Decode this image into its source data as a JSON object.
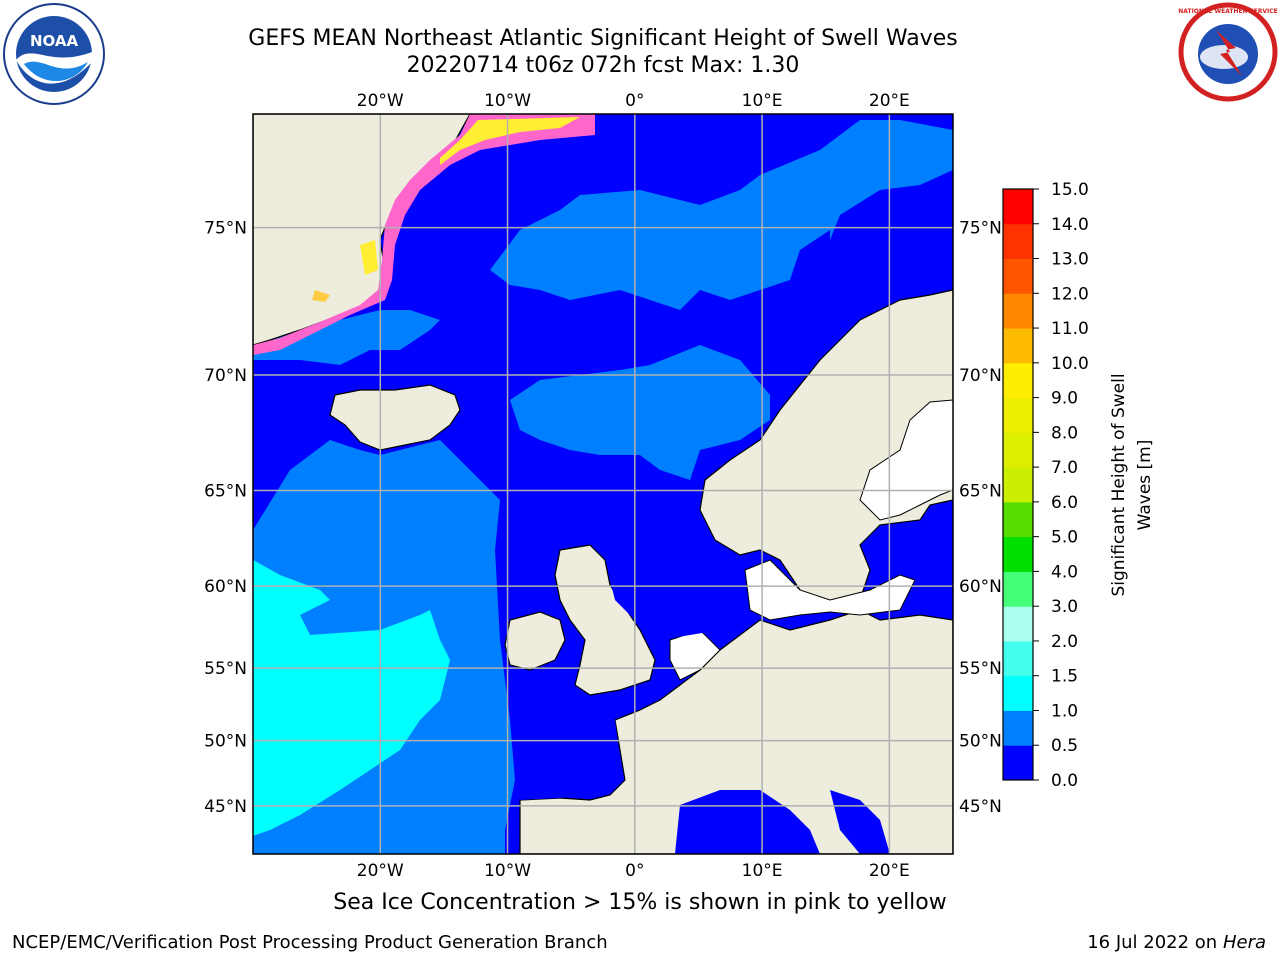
{
  "title": {
    "line1": "GEFS MEAN Northeast Atlantic Significant Height of Swell Waves",
    "line2": "20220714 t06z 072h fcst   Max: 1.30"
  },
  "logos": {
    "left": {
      "icon": "noaa-logo-icon",
      "text": "NOAA"
    },
    "right": {
      "icon": "nws-logo-icon",
      "text": "NATIONAL WEATHER SERVICE"
    }
  },
  "map": {
    "projection": "lat-lon",
    "lon_range": [
      -30,
      25
    ],
    "lat_range": [
      41,
      78
    ],
    "lon_ticks": [
      {
        "value": -20,
        "label": "20°W"
      },
      {
        "value": -10,
        "label": "10°W"
      },
      {
        "value": 0,
        "label": "0°"
      },
      {
        "value": 10,
        "label": "10°E"
      },
      {
        "value": 20,
        "label": "20°E"
      }
    ],
    "lat_ticks": [
      {
        "value": 45,
        "label": "45°N"
      },
      {
        "value": 50,
        "label": "50°N"
      },
      {
        "value": 55,
        "label": "55°N"
      },
      {
        "value": 60,
        "label": "60°N"
      },
      {
        "value": 65,
        "label": "65°N"
      },
      {
        "value": 70,
        "label": "70°N"
      },
      {
        "value": 75,
        "label": "75°N"
      }
    ],
    "grid": true,
    "colors": {
      "land": "#eeecdc",
      "ice_mask": "#ffffff",
      "ice_pink": "#ff66cc",
      "ice_yellow": "#ffee33",
      "grid": "#b0b0b0"
    }
  },
  "colorbar": {
    "label_line1": "Significant Height of Swell",
    "label_line2": "Waves [m]",
    "ticks": [
      "0.0",
      "0.5",
      "1.0",
      "1.5",
      "2.0",
      "3.0",
      "4.0",
      "5.0",
      "6.0",
      "7.0",
      "8.0",
      "9.0",
      "10.0",
      "11.0",
      "12.0",
      "13.0",
      "14.0",
      "15.0"
    ],
    "bins": [
      {
        "from": 0.0,
        "to": 0.5,
        "color": "#0000ff"
      },
      {
        "from": 0.5,
        "to": 1.0,
        "color": "#0080ff"
      },
      {
        "from": 1.0,
        "to": 1.5,
        "color": "#00ffff"
      },
      {
        "from": 1.5,
        "to": 2.0,
        "color": "#44ffee"
      },
      {
        "from": 2.0,
        "to": 3.0,
        "color": "#aaffee"
      },
      {
        "from": 3.0,
        "to": 4.0,
        "color": "#44ff77"
      },
      {
        "from": 4.0,
        "to": 5.0,
        "color": "#00e000"
      },
      {
        "from": 5.0,
        "to": 6.0,
        "color": "#55dd00"
      },
      {
        "from": 6.0,
        "to": 7.0,
        "color": "#ccee00"
      },
      {
        "from": 7.0,
        "to": 8.0,
        "color": "#ddee00"
      },
      {
        "from": 8.0,
        "to": 9.0,
        "color": "#eeee00"
      },
      {
        "from": 9.0,
        "to": 10.0,
        "color": "#ffee00"
      },
      {
        "from": 10.0,
        "to": 11.0,
        "color": "#ffbb00"
      },
      {
        "from": 11.0,
        "to": 12.0,
        "color": "#ff8800"
      },
      {
        "from": 12.0,
        "to": 13.0,
        "color": "#ff5500"
      },
      {
        "from": 13.0,
        "to": 14.0,
        "color": "#ff3300"
      },
      {
        "from": 14.0,
        "to": 15.0,
        "color": "#ff0000"
      }
    ]
  },
  "footnote": "Sea Ice Concentration > 15% is shown in pink to yellow",
  "credits": {
    "left": "NCEP/EMC/Verification Post Processing Product Generation Branch",
    "right_date": "16 Jul 2022 on ",
    "right_host": "Hera"
  }
}
